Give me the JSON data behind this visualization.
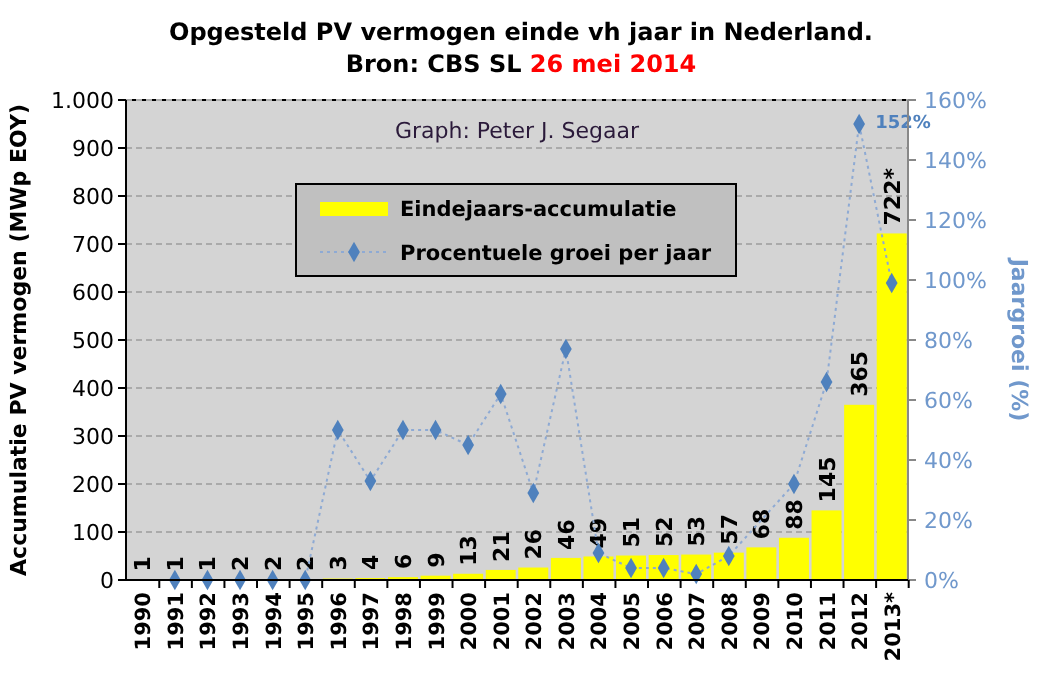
{
  "chart_data": {
    "type": "bar",
    "title": "Opgesteld PV vermogen einde vh jaar in Nederland.",
    "subtitle": "Bron: CBS SL 26 mei 2014",
    "categories": [
      "1990",
      "1991",
      "1992",
      "1993",
      "1994",
      "1995",
      "1996",
      "1997",
      "1998",
      "1999",
      "2000",
      "2001",
      "2002",
      "2003",
      "2004",
      "2005",
      "2006",
      "2007",
      "2008",
      "2009",
      "2010",
      "2011",
      "2012",
      "2013*"
    ],
    "series": [
      {
        "name": "Eindejaars-accumulatie",
        "color": "#ffff00",
        "values": [
          1,
          1,
          1,
          2,
          2,
          2,
          3,
          4,
          6,
          9,
          13,
          21,
          26,
          46,
          49,
          51,
          52,
          53,
          57,
          68,
          88,
          145,
          365,
          722
        ],
        "value_labels": [
          "1",
          "1",
          "1",
          "2",
          "2",
          "2",
          "3",
          "4",
          "6",
          "9",
          "13",
          "21",
          "26",
          "46",
          "49",
          "51",
          "52",
          "53",
          "57",
          "68",
          "88",
          "145",
          "365",
          "722*"
        ]
      },
      {
        "name": "Procentuele groei per jaar",
        "type": "line",
        "axis": "y2",
        "color": "#4f81bd",
        "marker": "diamond",
        "line_style": "dotted",
        "values": [
          null,
          0,
          0,
          0,
          0,
          0,
          50,
          33,
          50,
          50,
          45,
          62,
          29,
          77,
          9,
          4,
          4,
          2,
          8,
          null,
          32,
          66,
          152,
          99
        ],
        "value_labels": [
          null,
          null,
          null,
          null,
          null,
          null,
          null,
          null,
          null,
          null,
          null,
          null,
          null,
          null,
          null,
          null,
          null,
          null,
          null,
          null,
          null,
          null,
          "152%",
          null
        ]
      }
    ],
    "ylabel": "Accumulatie PV vermogen (MWp EOY)",
    "y2label": "Jaargroei (%)",
    "ylim": [
      0,
      1000
    ],
    "yticks": [
      0,
      100,
      200,
      300,
      400,
      500,
      600,
      700,
      800,
      900,
      {
        "value": 1000,
        "label": "1.000"
      }
    ],
    "y2lim": [
      0,
      160
    ],
    "y2ticks": [
      {
        "value": 0,
        "label": "0%"
      },
      {
        "value": 20,
        "label": "20%"
      },
      {
        "value": 40,
        "label": "40%"
      },
      {
        "value": 60,
        "label": "60%"
      },
      {
        "value": 80,
        "label": "80%"
      },
      {
        "value": 100,
        "label": "100%"
      },
      {
        "value": 120,
        "label": "120%"
      },
      {
        "value": 140,
        "label": "140%"
      },
      {
        "value": 160,
        "label": "160%"
      }
    ],
    "annotations": [
      "Graph: Peter J. Segaar"
    ],
    "grid": "y",
    "legend": "top"
  }
}
